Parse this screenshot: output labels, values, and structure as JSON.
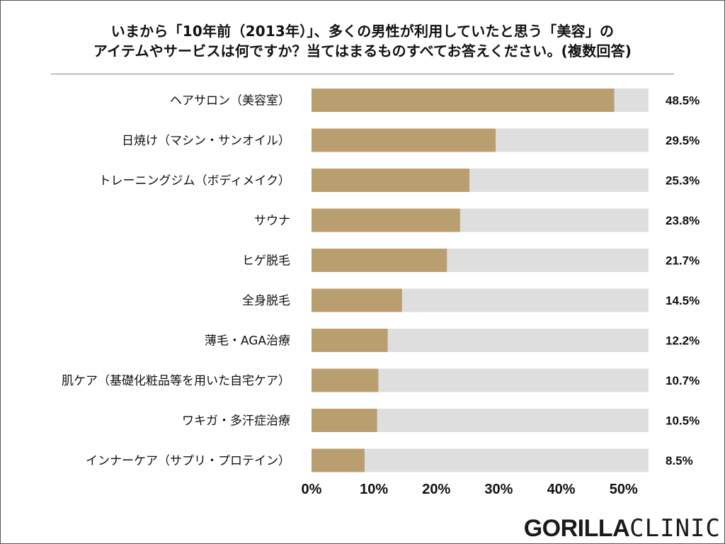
{
  "chart_data": {
    "type": "bar",
    "orientation": "horizontal",
    "title_lines": [
      "いまから「10年前（2013年）」、多くの男性が利用していたと思う「美容」の",
      "アイテムやサービスは何ですか？当てはまるものすべてお答えください。(複数回答)"
    ],
    "categories": [
      "ヘアサロン（美容室）",
      "日焼け（マシン・サンオイル）",
      "トレーニングジム（ボディメイク）",
      "サウナ",
      "ヒゲ脱毛",
      "全身脱毛",
      "薄毛・AGA治療",
      "肌ケア（基礎化粧品等を用いた自宅ケア）",
      "ワキガ・多汗症治療",
      "インナーケア（サプリ・プロテイン）"
    ],
    "values": [
      48.5,
      29.5,
      25.3,
      23.8,
      21.7,
      14.5,
      12.2,
      10.7,
      10.5,
      8.5
    ],
    "value_labels": [
      "48.5%",
      "29.5%",
      "25.3%",
      "23.8%",
      "21.7%",
      "14.5%",
      "12.2%",
      "10.7%",
      "10.5%",
      "8.5%"
    ],
    "xlim": [
      0,
      54
    ],
    "x_ticks": [
      0,
      10,
      20,
      30,
      40,
      50
    ],
    "x_tick_labels": [
      "0%",
      "10%",
      "20%",
      "30%",
      "40%",
      "50%"
    ],
    "xlabel": "",
    "ylabel": "",
    "grid": false,
    "colors": {
      "bar": "#b99f70",
      "track": "#dedede"
    }
  },
  "logo": {
    "bold": "GORILLA",
    "regular": "CLINIC"
  }
}
